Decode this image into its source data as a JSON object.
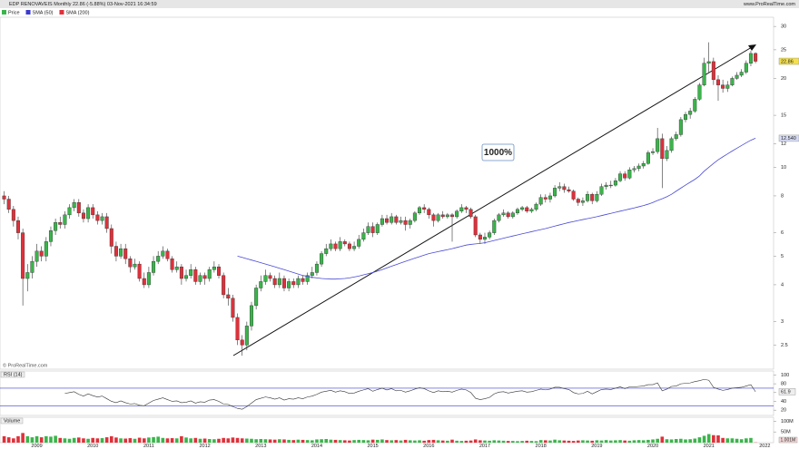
{
  "chart_data": {
    "type": "candlestick",
    "title": "EDP RENOVAVEIS Monthly 22.86 (-5.88%) 03-Nov-2021 16:34:59",
    "source": "www.ProRealTime.com",
    "watermark": "© ProRealTime.com",
    "annotation": "1000%",
    "log": true,
    "ylim": [
      2.1,
      32
    ],
    "yticks": [
      2.5,
      3,
      4,
      5,
      6,
      8,
      10,
      12,
      15,
      20,
      25,
      30
    ],
    "up_color": "#39b54a",
    "down_color": "#e0303a",
    "legend": [
      {
        "name": "Price",
        "color": "#39b54a"
      },
      {
        "name": "SMA (50)",
        "color": "#3a3ad0"
      },
      {
        "name": "SMA (200)",
        "color": "#e0303a"
      }
    ],
    "categories": [
      null,
      null,
      null,
      null,
      null,
      null,
      null,
      "2009",
      null,
      null,
      null,
      null,
      null,
      null,
      null,
      null,
      null,
      null,
      null,
      "2010",
      null,
      null,
      null,
      null,
      null,
      null,
      null,
      null,
      null,
      null,
      null,
      "2011",
      null,
      null,
      null,
      null,
      null,
      null,
      null,
      null,
      null,
      null,
      null,
      "2012",
      null,
      null,
      null,
      null,
      null,
      null,
      null,
      null,
      null,
      null,
      null,
      "2013",
      null,
      null,
      null,
      null,
      null,
      null,
      null,
      null,
      null,
      null,
      null,
      "2014",
      null,
      null,
      null,
      null,
      null,
      null,
      null,
      null,
      null,
      null,
      null,
      "2015",
      null,
      null,
      null,
      null,
      null,
      null,
      null,
      null,
      null,
      null,
      null,
      "2016",
      null,
      null,
      null,
      null,
      null,
      null,
      null,
      null,
      null,
      null,
      null,
      "2017",
      null,
      null,
      null,
      null,
      null,
      null,
      null,
      null,
      null,
      null,
      null,
      "2018",
      null,
      null,
      null,
      null,
      null,
      null,
      null,
      null,
      null,
      null,
      null,
      "2019",
      null,
      null,
      null,
      null,
      null,
      null,
      null,
      null,
      null,
      null,
      null,
      "2020",
      null,
      null,
      null,
      null,
      null,
      null,
      null,
      null,
      null,
      null,
      null,
      "2021",
      null,
      null,
      null,
      null,
      null,
      null,
      null,
      null,
      null,
      null,
      null,
      "2022"
    ],
    "open": [
      8.0,
      7.8,
      7.2,
      6.6,
      6.0,
      4.2,
      4.4,
      4.8,
      5.2,
      5.0,
      5.6,
      6.1,
      6.5,
      6.4,
      6.9,
      7.3,
      7.6,
      7.0,
      6.7,
      7.3,
      6.9,
      6.6,
      6.8,
      6.2,
      5.4,
      5.0,
      5.3,
      4.9,
      4.6,
      4.7,
      4.2,
      4.0,
      4.4,
      4.8,
      5.0,
      5.2,
      4.9,
      4.5,
      4.6,
      4.2,
      4.3,
      4.5,
      4.1,
      4.3,
      4.2,
      4.5,
      4.6,
      4.3,
      3.7,
      3.6,
      3.1,
      2.6,
      2.5,
      2.9,
      3.4,
      3.9,
      4.1,
      4.3,
      4.2,
      4.0,
      4.2,
      3.9,
      4.1,
      4.0,
      4.2,
      4.1,
      4.3,
      4.4,
      4.7,
      5.1,
      5.3,
      5.5,
      5.3,
      5.6,
      5.5,
      5.3,
      5.4,
      5.7,
      6.0,
      6.3,
      6.0,
      6.4,
      6.7,
      6.5,
      6.8,
      6.5,
      6.6,
      6.4,
      6.6,
      7.0,
      7.3,
      7.2,
      6.9,
      6.6,
      6.9,
      6.8,
      6.9,
      6.8,
      7.1,
      7.3,
      7.2,
      6.8,
      5.9,
      5.7,
      5.8,
      6.0,
      6.6,
      6.9,
      7.0,
      6.8,
      7.0,
      7.2,
      7.3,
      7.1,
      7.2,
      7.5,
      7.9,
      7.8,
      8.0,
      8.5,
      8.6,
      8.4,
      8.3,
      7.8,
      7.6,
      7.7,
      8.1,
      7.7,
      8.1,
      8.6,
      8.7,
      8.7,
      9.0,
      9.5,
      9.2,
      9.8,
      9.9,
      10.1,
      10.3,
      11.2,
      11.3,
      12.5,
      10.7,
      11.4,
      12.5,
      12.9,
      14.5,
      15.1,
      15.5,
      17.0,
      19.0,
      22.5,
      22.8,
      19.8,
      19.0,
      18.5,
      19.0,
      20.0,
      20.5,
      21.0,
      22.5,
      24.3,
      null,
      null
    ],
    "high": [
      8.3,
      8.0,
      7.4,
      6.8,
      6.2,
      4.7,
      5.0,
      5.5,
      5.4,
      5.8,
      6.3,
      6.7,
      6.8,
      7.1,
      7.5,
      7.8,
      7.8,
      7.2,
      7.5,
      7.5,
      7.1,
      7.0,
      7.0,
      6.4,
      5.6,
      5.5,
      5.5,
      5.0,
      4.9,
      4.8,
      4.4,
      4.6,
      5.0,
      5.2,
      5.4,
      5.3,
      5.0,
      4.8,
      4.7,
      4.5,
      4.7,
      4.6,
      4.4,
      4.4,
      4.6,
      4.8,
      4.7,
      4.4,
      3.9,
      3.7,
      3.2,
      2.7,
      3.0,
      3.5,
      4.0,
      4.3,
      4.5,
      4.4,
      4.3,
      4.4,
      4.3,
      4.2,
      4.2,
      4.3,
      4.3,
      4.4,
      4.6,
      4.8,
      5.2,
      5.5,
      5.7,
      5.6,
      5.8,
      5.7,
      5.6,
      5.6,
      5.9,
      6.2,
      6.5,
      6.5,
      6.5,
      6.9,
      6.9,
      7.0,
      6.9,
      6.8,
      6.8,
      6.7,
      7.1,
      7.4,
      7.5,
      7.3,
      7.0,
      7.0,
      7.1,
      7.0,
      7.0,
      7.2,
      7.5,
      7.4,
      7.3,
      6.9,
      6.0,
      6.0,
      6.1,
      6.7,
      7.0,
      7.2,
      7.1,
      7.1,
      7.3,
      7.4,
      7.4,
      7.3,
      7.6,
      8.1,
      8.1,
      8.2,
      8.7,
      8.9,
      8.8,
      8.6,
      8.4,
      7.9,
      7.9,
      8.3,
      8.2,
      8.3,
      8.8,
      8.9,
      9.0,
      9.2,
      9.7,
      9.7,
      10.0,
      10.1,
      10.3,
      10.5,
      11.4,
      11.6,
      13.6,
      13.0,
      11.8,
      12.7,
      13.2,
      14.8,
      15.4,
      15.9,
      17.3,
      19.3,
      23.5,
      26.5,
      23.5,
      20.5,
      19.8,
      19.6,
      20.3,
      21.0,
      21.5,
      23.0,
      24.8,
      24.5,
      null,
      null
    ],
    "low": [
      7.5,
      7.0,
      6.3,
      5.7,
      3.4,
      3.8,
      4.2,
      4.6,
      4.8,
      4.8,
      5.4,
      5.9,
      6.2,
      6.2,
      6.7,
      7.1,
      6.8,
      6.5,
      6.5,
      6.7,
      6.4,
      6.4,
      6.0,
      5.1,
      4.8,
      4.9,
      4.7,
      4.4,
      4.5,
      4.1,
      3.9,
      3.9,
      4.3,
      4.7,
      4.9,
      4.8,
      4.4,
      4.4,
      4.0,
      4.1,
      4.2,
      4.0,
      4.0,
      4.0,
      4.1,
      4.4,
      4.2,
      3.6,
      3.4,
      3.0,
      2.5,
      2.3,
      2.4,
      2.8,
      3.3,
      3.8,
      4.0,
      4.1,
      3.9,
      3.9,
      3.8,
      3.8,
      3.9,
      3.9,
      4.0,
      4.0,
      4.2,
      4.3,
      4.6,
      5.0,
      5.2,
      5.2,
      5.2,
      5.4,
      5.2,
      5.2,
      5.3,
      5.6,
      5.9,
      5.8,
      5.9,
      6.3,
      6.4,
      6.4,
      6.4,
      6.4,
      6.1,
      6.2,
      6.5,
      6.9,
      7.0,
      6.7,
      6.3,
      6.5,
      6.7,
      6.7,
      5.6,
      6.7,
      7.0,
      7.0,
      6.7,
      5.8,
      5.5,
      5.5,
      5.7,
      5.9,
      6.5,
      6.8,
      6.7,
      6.7,
      6.9,
      7.1,
      7.0,
      7.0,
      7.1,
      7.4,
      7.6,
      7.6,
      7.9,
      8.3,
      8.2,
      8.2,
      7.7,
      7.4,
      7.4,
      7.6,
      7.5,
      7.6,
      8.0,
      8.4,
      8.5,
      8.6,
      8.9,
      9.0,
      9.1,
      9.6,
      9.7,
      9.9,
      10.2,
      11.0,
      11.1,
      8.5,
      10.5,
      11.2,
      12.3,
      12.7,
      14.2,
      14.6,
      15.3,
      16.8,
      18.8,
      21.0,
      19.0,
      16.8,
      17.9,
      18.0,
      18.8,
      19.8,
      20.2,
      20.7,
      22.0,
      22.5,
      null,
      null
    ],
    "close": [
      7.8,
      7.2,
      6.6,
      6.0,
      4.2,
      4.4,
      4.8,
      5.2,
      5.0,
      5.6,
      6.1,
      6.5,
      6.4,
      6.9,
      7.3,
      7.6,
      7.0,
      6.7,
      7.3,
      6.9,
      6.6,
      6.8,
      6.2,
      5.4,
      5.0,
      5.3,
      4.9,
      4.6,
      4.7,
      4.2,
      4.0,
      4.4,
      4.8,
      5.0,
      5.2,
      4.9,
      4.5,
      4.6,
      4.2,
      4.3,
      4.5,
      4.1,
      4.3,
      4.2,
      4.5,
      4.6,
      4.3,
      3.7,
      3.6,
      3.1,
      2.6,
      2.5,
      2.9,
      3.4,
      3.9,
      4.1,
      4.3,
      4.2,
      4.0,
      4.2,
      3.9,
      4.1,
      4.0,
      4.2,
      4.1,
      4.3,
      4.4,
      4.7,
      5.1,
      5.3,
      5.5,
      5.3,
      5.6,
      5.5,
      5.3,
      5.4,
      5.7,
      6.0,
      6.3,
      6.0,
      6.4,
      6.7,
      6.5,
      6.8,
      6.5,
      6.6,
      6.4,
      6.6,
      7.0,
      7.3,
      7.2,
      6.9,
      6.6,
      6.9,
      6.8,
      6.9,
      6.8,
      7.1,
      7.3,
      7.2,
      6.8,
      5.9,
      5.7,
      5.8,
      6.0,
      6.6,
      6.9,
      7.0,
      6.8,
      7.0,
      7.2,
      7.3,
      7.1,
      7.2,
      7.5,
      7.9,
      7.8,
      8.0,
      8.5,
      8.6,
      8.4,
      8.3,
      7.8,
      7.6,
      7.7,
      8.1,
      7.7,
      8.1,
      8.6,
      8.7,
      8.7,
      9.0,
      9.5,
      9.2,
      9.8,
      9.9,
      10.1,
      10.3,
      11.2,
      11.3,
      12.5,
      10.7,
      11.4,
      12.5,
      12.9,
      14.5,
      15.1,
      15.5,
      17.0,
      19.0,
      22.5,
      22.8,
      19.8,
      19.0,
      18.5,
      19.0,
      20.0,
      20.5,
      21.0,
      22.5,
      24.3,
      22.86,
      null,
      null
    ],
    "sma": {
      "color": "#4a4ad6",
      "last_label": "12.540",
      "values": [
        null,
        null,
        null,
        null,
        null,
        null,
        null,
        null,
        null,
        null,
        null,
        null,
        null,
        null,
        null,
        null,
        null,
        null,
        null,
        null,
        null,
        null,
        null,
        null,
        null,
        null,
        null,
        null,
        null,
        null,
        null,
        null,
        null,
        null,
        null,
        null,
        null,
        null,
        null,
        null,
        null,
        null,
        null,
        null,
        null,
        null,
        null,
        null,
        null,
        null,
        5.0,
        4.95,
        4.9,
        4.85,
        4.8,
        4.75,
        4.7,
        4.65,
        4.6,
        4.55,
        4.5,
        4.45,
        4.4,
        4.35,
        4.3,
        4.27,
        4.24,
        4.22,
        4.2,
        4.19,
        4.18,
        4.18,
        4.19,
        4.2,
        4.22,
        4.25,
        4.28,
        4.32,
        4.36,
        4.4,
        4.45,
        4.5,
        4.56,
        4.62,
        4.68,
        4.74,
        4.8,
        4.86,
        4.92,
        4.98,
        5.04,
        5.1,
        5.14,
        5.18,
        5.22,
        5.26,
        5.3,
        5.35,
        5.4,
        5.45,
        5.48,
        5.5,
        5.52,
        5.55,
        5.6,
        5.65,
        5.7,
        5.75,
        5.8,
        5.85,
        5.9,
        5.95,
        6.0,
        6.05,
        6.1,
        6.15,
        6.2,
        6.26,
        6.32,
        6.38,
        6.44,
        6.5,
        6.55,
        6.6,
        6.65,
        6.7,
        6.75,
        6.8,
        6.86,
        6.92,
        6.98,
        7.04,
        7.1,
        7.16,
        7.22,
        7.28,
        7.35,
        7.42,
        7.5,
        7.6,
        7.72,
        7.82,
        7.95,
        8.1,
        8.3,
        8.5,
        8.7,
        8.9,
        9.1,
        9.35,
        9.7,
        10.0,
        10.3,
        10.6,
        10.85,
        11.1,
        11.35,
        11.6,
        11.85,
        12.1,
        12.35,
        12.54,
        null,
        null
      ]
    },
    "rsi": {
      "name": "RSI (14)",
      "color": "#333333",
      "level_color": "#3a3ad0",
      "ylim": [
        10,
        105
      ],
      "yticks": [
        100,
        80,
        60,
        40,
        20
      ],
      "levels": [
        70,
        30
      ],
      "values": [
        null,
        null,
        null,
        null,
        null,
        null,
        null,
        null,
        null,
        null,
        null,
        null,
        null,
        58,
        60,
        62,
        56,
        52,
        57,
        53,
        50,
        52,
        46,
        40,
        37,
        41,
        37,
        34,
        35,
        31,
        30,
        36,
        42,
        45,
        48,
        44,
        40,
        41,
        37,
        38,
        41,
        36,
        39,
        38,
        43,
        44,
        40,
        34,
        33,
        28,
        24,
        22,
        28,
        36,
        44,
        47,
        50,
        48,
        45,
        48,
        43,
        46,
        45,
        48,
        46,
        50,
        52,
        56,
        61,
        63,
        65,
        61,
        64,
        62,
        58,
        59,
        63,
        66,
        69,
        63,
        67,
        70,
        66,
        69,
        64,
        65,
        61,
        64,
        68,
        71,
        69,
        64,
        60,
        64,
        62,
        63,
        61,
        65,
        68,
        66,
        60,
        47,
        44,
        46,
        49,
        57,
        61,
        62,
        59,
        61,
        63,
        64,
        61,
        62,
        65,
        68,
        66,
        68,
        72,
        72,
        69,
        67,
        60,
        57,
        58,
        63,
        57,
        62,
        67,
        68,
        67,
        70,
        73,
        69,
        73,
        73,
        74,
        75,
        78,
        78,
        82,
        64,
        68,
        74,
        75,
        80,
        81,
        82,
        85,
        87,
        90,
        88,
        72,
        68,
        65,
        67,
        70,
        71,
        72,
        75,
        78,
        61.9,
        null,
        null
      ]
    },
    "volume": {
      "name": "Volume",
      "ylim": [
        0,
        110000000
      ],
      "yticks": [
        {
          "value": 100000000,
          "label": "100M"
        },
        {
          "value": 50000000,
          "label": "50M"
        }
      ],
      "last_label": "1.001M",
      "values": [
        30000000.0,
        25000000.0,
        20000000.0,
        30000000.0,
        45000000.0,
        30000000.0,
        25000000.0,
        30000000.0,
        25000000.0,
        30000000.0,
        28000000.0,
        32000000.0,
        22000000.0,
        20000000.0,
        18000000.0,
        22000000.0,
        24000000.0,
        20000000.0,
        18000000.0,
        22000000.0,
        20000000.0,
        21000000.0,
        25000000.0,
        30000000.0,
        24000000.0,
        20000000.0,
        19000000.0,
        21000000.0,
        18000000.0,
        23000000.0,
        20000000.0,
        24000000.0,
        26000000.0,
        28000000.0,
        22000000.0,
        20000000.0,
        21000000.0,
        20000000.0,
        30000000.0,
        24000000.0,
        20000000.0,
        22000000.0,
        18000000.0,
        19000000.0,
        17000000.0,
        16000000.0,
        18000000.0,
        22000000.0,
        20000000.0,
        24000000.0,
        22000000.0,
        20000000.0,
        19000000.0,
        18000000.0,
        16000000.0,
        17000000.0,
        16000000.0,
        15000000.0,
        14000000.0,
        16000000.0,
        15000000.0,
        13000000.0,
        12000000.0,
        14000000.0,
        13000000.0,
        12000000.0,
        11000000.0,
        15000000.0,
        16000000.0,
        17000000.0,
        14000000.0,
        13000000.0,
        12000000.0,
        11000000.0,
        10000000.0,
        12000000.0,
        13000000.0,
        12000000.0,
        11000000.0,
        14000000.0,
        13000000.0,
        15000000.0,
        12000000.0,
        11000000.0,
        12000000.0,
        10000000.0,
        13000000.0,
        11000000.0,
        10000000.0,
        11000000.0,
        9000000.0,
        12000000.0,
        13000000.0,
        11000000.0,
        10000000.0,
        9000000.0,
        14000000.0,
        9000000.0,
        8000000.0,
        9000000.0,
        10000000.0,
        15000000.0,
        11000000.0,
        10000000.0,
        9000000.0,
        11000000.0,
        10000000.0,
        9000000.0,
        8000000.0,
        8000000.0,
        7000000.0,
        8000000.0,
        9000000.0,
        8000000.0,
        7000000.0,
        12000000.0,
        11000000.0,
        10000000.0,
        14000000.0,
        11000000.0,
        10000000.0,
        9000000.0,
        8000000.0,
        10000000.0,
        11000000.0,
        10000000.0,
        9000000.0,
        11000000.0,
        10000000.0,
        12000000.0,
        10000000.0,
        11000000.0,
        12000000.0,
        10000000.0,
        9000000.0,
        11000000.0,
        12000000.0,
        11000000.0,
        13000000.0,
        15000000.0,
        18000000.0,
        28000000.0,
        16000000.0,
        15000000.0,
        17000000.0,
        18000000.0,
        15000000.0,
        16000000.0,
        19000000.0,
        25000000.0,
        32000000.0,
        40000000.0,
        35000000.0,
        34000000.0,
        22000000.0,
        20000000.0,
        20000000.0,
        18000000.0,
        16000000.0,
        20000000.0,
        22000000.0,
        1001000.0,
        null,
        null
      ]
    }
  }
}
